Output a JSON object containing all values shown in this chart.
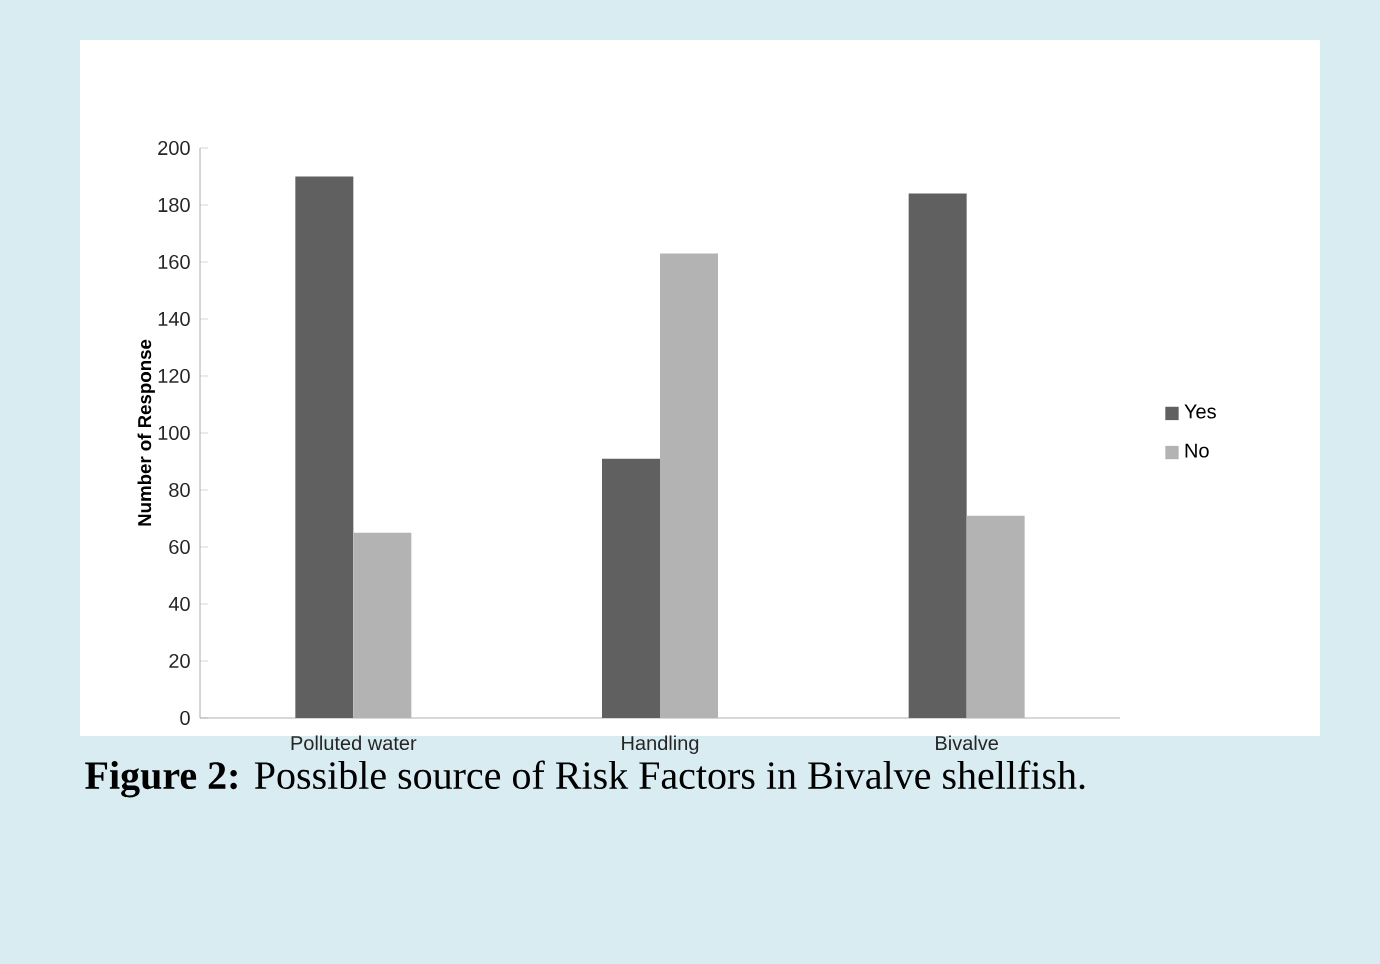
{
  "chart_data": {
    "type": "bar",
    "ylabel": "Number of Response",
    "categories": [
      "Polluted water",
      "Handling",
      "Bivalve"
    ],
    "series": [
      {
        "name": "Yes",
        "color": "#606060",
        "values": [
          190,
          91,
          184
        ]
      },
      {
        "name": "No",
        "color": "#b3b3b3",
        "values": [
          65,
          163,
          71
        ]
      }
    ],
    "ylim": [
      0,
      200
    ],
    "yticks": [
      0,
      20,
      40,
      60,
      80,
      100,
      120,
      140,
      160,
      180,
      200
    ],
    "grid": false,
    "legend": "right",
    "annotations": [
      "**Figure 2:** Possible source of Risk Factors in Bivalve shellfish."
    ]
  }
}
